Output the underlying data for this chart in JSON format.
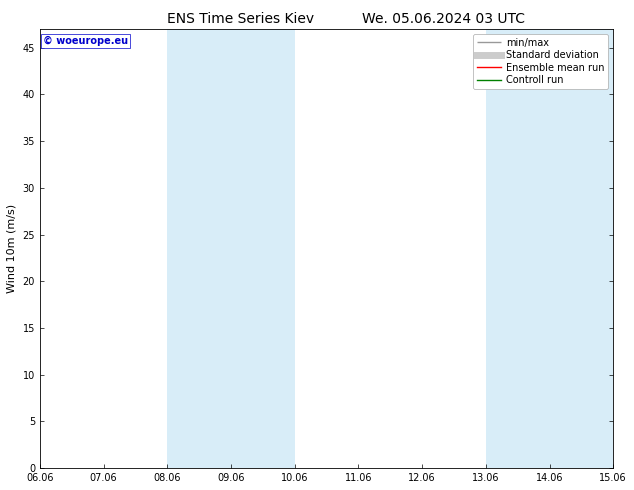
{
  "title_left": "ENS Time Series Kiev",
  "title_right": "We. 05.06.2024 03 UTC",
  "ylabel": "Wind 10m (m/s)",
  "ylim": [
    0,
    47
  ],
  "yticks": [
    0,
    5,
    10,
    15,
    20,
    25,
    30,
    35,
    40,
    45
  ],
  "xtick_labels": [
    "06.06",
    "07.06",
    "08.06",
    "09.06",
    "10.06",
    "11.06",
    "12.06",
    "13.06",
    "14.06",
    "15.06"
  ],
  "num_xticks": 10,
  "shaded_bands": [
    {
      "xmin": 2.0,
      "xmax": 3.0
    },
    {
      "xmin": 3.0,
      "xmax": 4.0
    },
    {
      "xmin": 7.0,
      "xmax": 8.0
    },
    {
      "xmin": 8.0,
      "xmax": 9.0
    }
  ],
  "shaded_color": "#d8edf8",
  "watermark_text": "© woeurope.eu",
  "watermark_color": "#0000cc",
  "legend_entries": [
    {
      "label": "min/max",
      "color": "#999999",
      "lw": 1.0
    },
    {
      "label": "Standard deviation",
      "color": "#cccccc",
      "lw": 5
    },
    {
      "label": "Ensemble mean run",
      "color": "red",
      "lw": 1.0
    },
    {
      "label": "Controll run",
      "color": "green",
      "lw": 1.0
    }
  ],
  "bg_color": "#ffffff",
  "spine_color": "#000000",
  "title_fontsize": 10,
  "label_fontsize": 8,
  "tick_fontsize": 7,
  "watermark_fontsize": 7,
  "legend_fontsize": 7,
  "figsize": [
    6.34,
    4.9
  ],
  "dpi": 100,
  "xmin": 0,
  "xmax": 9
}
